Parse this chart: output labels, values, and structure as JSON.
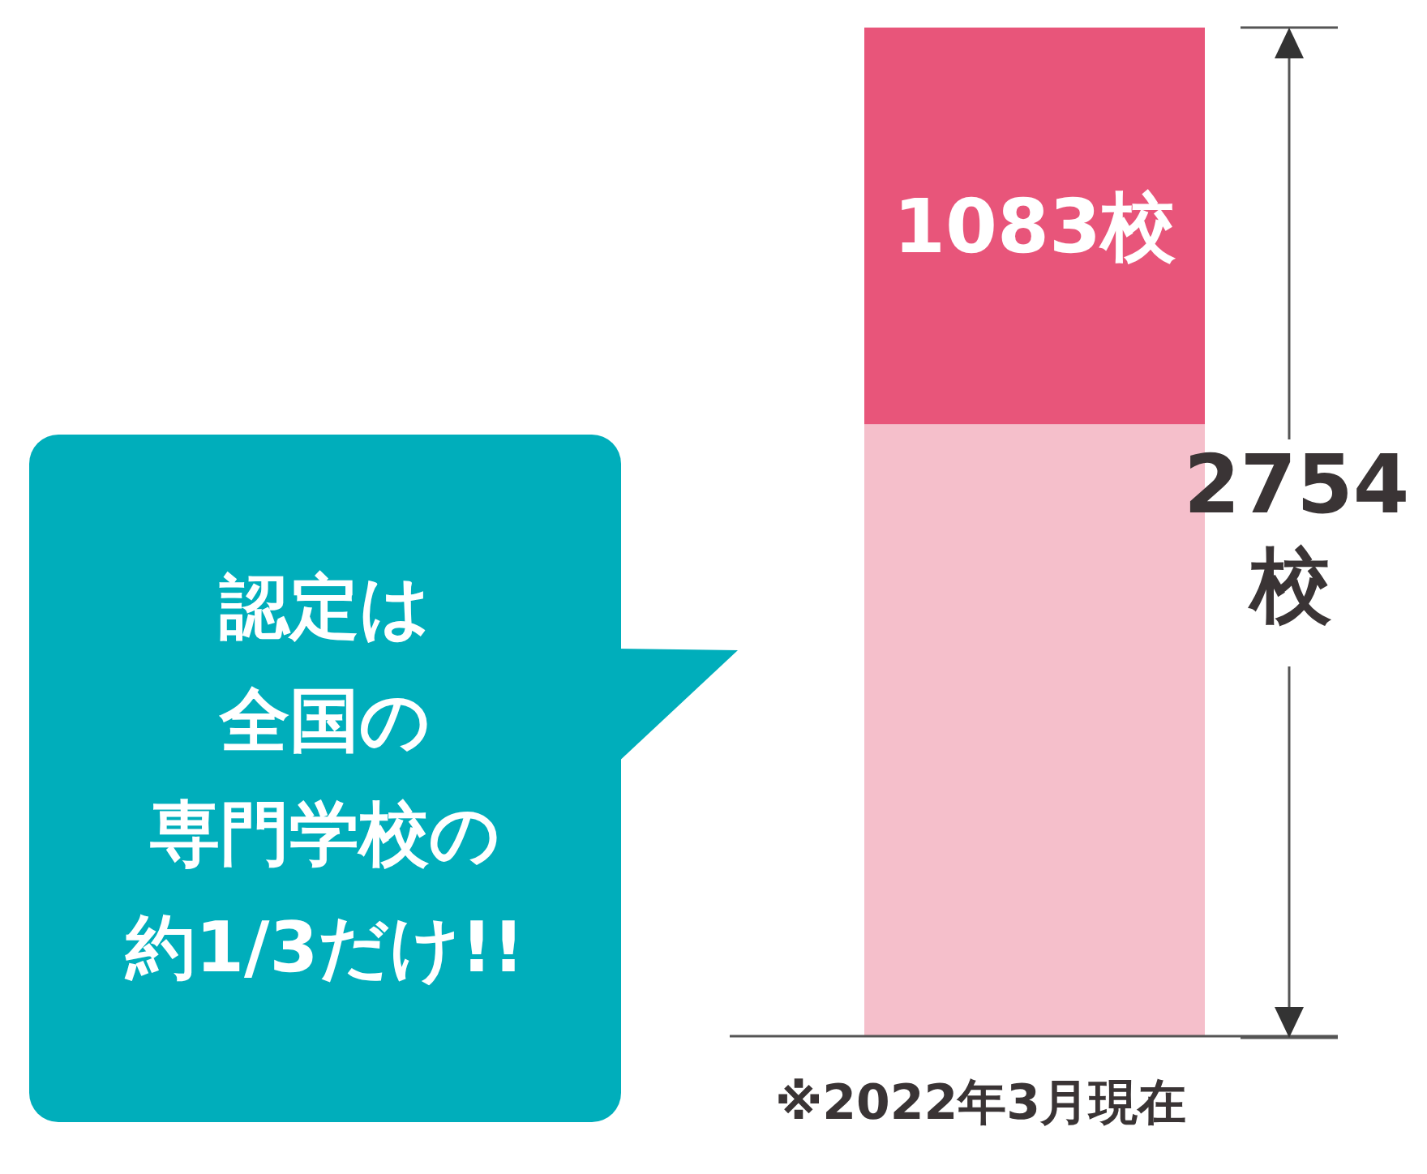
{
  "chart_data": {
    "type": "bar",
    "stacked": true,
    "categories": [
      null
    ],
    "series": [
      {
        "color": "#f5bfcb",
        "values": [
          1671
        ]
      },
      {
        "color": "#e8557a",
        "values": [
          1083
        ],
        "value_labels": [
          "1083校"
        ]
      }
    ],
    "totals": [
      "2754校"
    ],
    "annotations": [
      "※2022年3月現在",
      "認定は",
      "全国の",
      "専門学校の",
      "約1/3だけ!!"
    ]
  }
}
